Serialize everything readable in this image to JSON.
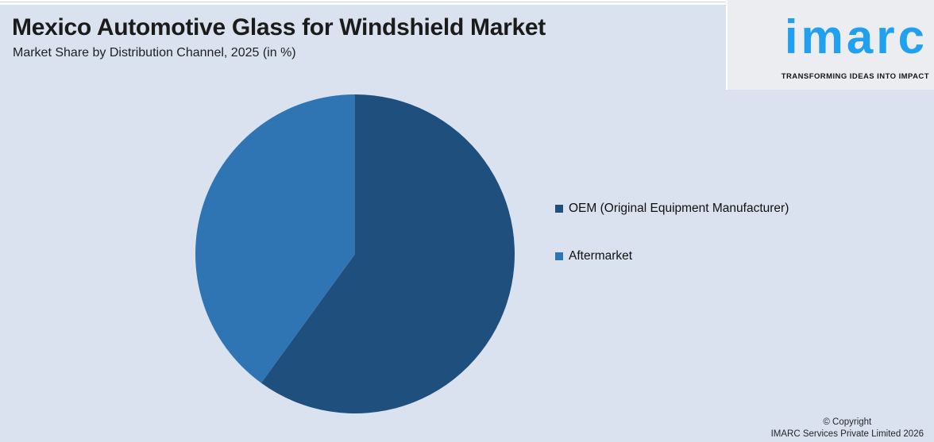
{
  "header": {
    "title": "Mexico Automotive Glass for Windshield Market",
    "subtitle": "Market Share by Distribution Channel, 2025 (in %)"
  },
  "logo": {
    "text": "imarc",
    "tagline": "TRANSFORMING IDEAS INTO IMPACT",
    "accent_color": "#21a0f0"
  },
  "chart_data": {
    "type": "pie",
    "title": "Mexico Automotive Glass for Windshield Market",
    "subtitle": "Market Share by Distribution Channel, 2025 (in %)",
    "categories": [
      "OEM (Original Equipment Manufacturer)",
      "Aftermarket"
    ],
    "values": [
      60,
      40
    ],
    "colors": [
      "#1f4f7d",
      "#2f75b4"
    ],
    "start_angle_deg": 0,
    "direction": "clockwise",
    "legend_position": "right",
    "data_labels_shown": false
  },
  "footer": {
    "copyright_line1": "© Copyright",
    "copyright_line2": "IMARC Services Private Limited 2026"
  }
}
